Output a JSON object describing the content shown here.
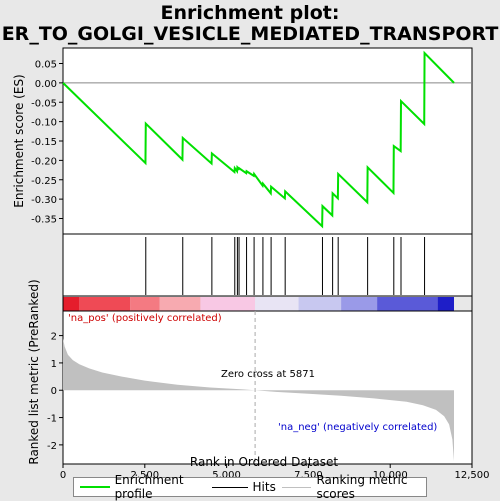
{
  "title_line1": "Enrichment plot:",
  "title_line2": "ER_TO_GOLGI_VESICLE_MEDIATED_TRANSPORT",
  "colors": {
    "enrichment": "#00e000",
    "hits": "#000000",
    "ranking": "#c0c0c0",
    "pos_label": "#cc0000",
    "neg_label": "#0000cc",
    "zero_line": "#aaaaaa"
  },
  "chart_data": [
    {
      "type": "line",
      "name": "enrichment-profile",
      "ylabel": "Enrichment score (ES)",
      "xlim": [
        0,
        12500
      ],
      "ylim": [
        -0.39,
        0.09
      ],
      "yticks": [
        0.05,
        0.0,
        -0.05,
        -0.1,
        -0.15,
        -0.2,
        -0.25,
        -0.3,
        -0.35
      ],
      "ytick_labels": [
        "0.05",
        "0.00",
        "-0.05",
        "-0.10",
        "-0.15",
        "-0.20",
        "-0.25",
        "-0.30",
        "-0.35"
      ],
      "x": [
        0,
        2520,
        2530,
        3650,
        3660,
        4540,
        4550,
        5240,
        5250,
        5320,
        5330,
        5370,
        5380,
        5600,
        5610,
        5830,
        5840,
        6100,
        6110,
        6350,
        6360,
        6780,
        6790,
        7920,
        7930,
        8230,
        8240,
        8400,
        8410,
        9300,
        9310,
        10100,
        10110,
        10320,
        10330,
        11040,
        11050,
        11950
      ],
      "y": [
        0.0,
        -0.207,
        -0.105,
        -0.198,
        -0.142,
        -0.208,
        -0.182,
        -0.23,
        -0.22,
        -0.228,
        -0.218,
        -0.222,
        -0.22,
        -0.233,
        -0.228,
        -0.24,
        -0.235,
        -0.265,
        -0.26,
        -0.285,
        -0.268,
        -0.298,
        -0.28,
        -0.37,
        -0.318,
        -0.342,
        -0.285,
        -0.298,
        -0.235,
        -0.308,
        -0.218,
        -0.284,
        -0.163,
        -0.176,
        -0.047,
        -0.106,
        0.077,
        0.0
      ]
    },
    {
      "type": "scatter",
      "name": "hits",
      "x": [
        2530,
        3660,
        4550,
        5250,
        5330,
        5380,
        5610,
        5840,
        6110,
        6360,
        6790,
        7930,
        8240,
        8410,
        9310,
        10110,
        10330,
        11050
      ]
    },
    {
      "type": "area",
      "name": "ranked-list-metric",
      "ylabel": "Ranked list metric (PreRanked)",
      "xlabel": "Rank in Ordered Dataset",
      "xlim": [
        0,
        12500
      ],
      "ylim": [
        -2.7,
        2.9
      ],
      "yticks": [
        2,
        1,
        0,
        -1,
        -2
      ],
      "ytick_labels": [
        "2",
        "1",
        "0",
        "-1",
        "-2"
      ],
      "xticks": [
        0,
        2500,
        5000,
        7500,
        10000,
        12500
      ],
      "xtick_labels": [
        "0",
        "2,500",
        "5,000",
        "7,500",
        "10,000",
        "12,500"
      ],
      "x": [
        0,
        50,
        150,
        300,
        500,
        800,
        1200,
        1800,
        2500,
        3500,
        4500,
        5500,
        5871,
        6500,
        7500,
        8500,
        9500,
        10500,
        11000,
        11400,
        11650,
        11800,
        11900,
        11950
      ],
      "y": [
        1.9,
        1.6,
        1.3,
        1.1,
        0.95,
        0.8,
        0.65,
        0.5,
        0.35,
        0.2,
        0.1,
        0.03,
        0.0,
        -0.06,
        -0.13,
        -0.2,
        -0.3,
        -0.42,
        -0.55,
        -0.72,
        -0.95,
        -1.25,
        -1.8,
        -2.6
      ]
    }
  ],
  "labels": {
    "pos": "'na_pos' (positively correlated)",
    "neg": "'na_neg' (negatively correlated)",
    "zero_cross": "Zero cross at 5871"
  },
  "zero_cross_rank": 5871,
  "legend": {
    "enrichment": "Enrichment profile",
    "hits": "Hits",
    "ranking": "Ranking metric scores"
  }
}
